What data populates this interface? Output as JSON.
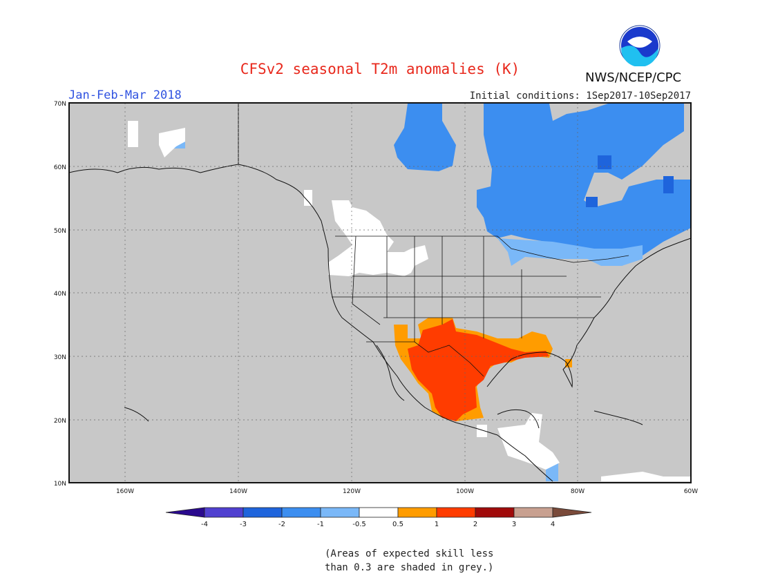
{
  "header": {
    "title": "CFSv2 seasonal T2m anomalies (K)",
    "period": "Jan-Feb-Mar 2018",
    "initial_conditions": "Initial conditions: 1Sep2017-10Sep2017",
    "agency": "NWS/NCEP/CPC",
    "logo_text": "NOAA"
  },
  "map": {
    "lat_labels": [
      "70N",
      "60N",
      "50N",
      "40N",
      "30N",
      "20N",
      "10N"
    ],
    "lon_labels": [
      "160W",
      "140W",
      "120W",
      "100W",
      "80W",
      "60W"
    ],
    "skill_mask_color": "#c8c8c8",
    "land_border_color": "#111111"
  },
  "colorbar": {
    "labels": [
      "-4",
      "-3",
      "-2",
      "-1",
      "-0.5",
      "0.5",
      "1",
      "2",
      "3",
      "4"
    ],
    "colors": [
      "#2a0a8e",
      "#5040d0",
      "#1e64dc",
      "#3c8ef0",
      "#7ab8f8",
      "#ffffff",
      "#ff9c00",
      "#ff3c00",
      "#a00a0a",
      "#c8a090",
      "#7a4a3a"
    ]
  },
  "footnote": {
    "line1": "(Areas of expected skill less",
    "line2": "than 0.3 are shaded in grey.)"
  }
}
